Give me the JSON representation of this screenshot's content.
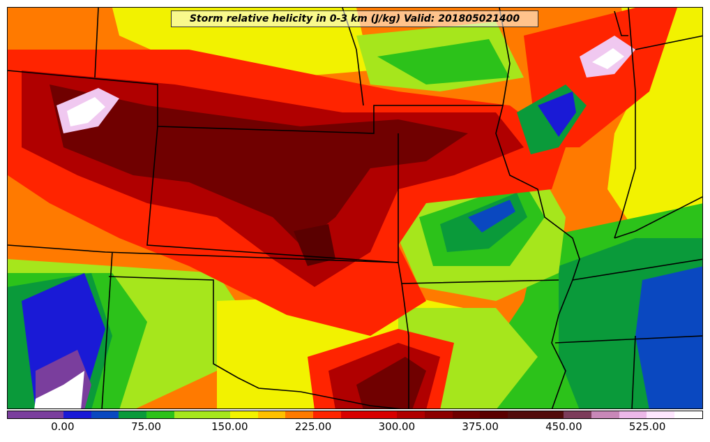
{
  "title": "Storm relative helicity in 0-3 km (J/kg) Valid: 201805021400",
  "colorbar": {
    "colors": [
      "#7a3e9d",
      "#1a1ad6",
      "#0a48c0",
      "#0a9a3a",
      "#2cc21a",
      "#a6e61c",
      "#f2f200",
      "#ffc000",
      "#ff7a00",
      "#ff2400",
      "#d80000",
      "#b00000",
      "#8c0000",
      "#6e0000",
      "#5a0000",
      "#520c0c",
      "#7c3c5a",
      "#c888b8",
      "#ecb8e8",
      "#fde6fd",
      "#ffffff"
    ],
    "labels": [
      "0.00",
      "75.00",
      "150.00",
      "225.00",
      "300.00",
      "375.00",
      "450.00",
      "525.00"
    ],
    "label_segment_index": [
      2,
      5,
      8,
      11,
      14,
      17,
      20,
      23
    ]
  },
  "map": {
    "field_colors": {
      "blue": "#1a1ad6",
      "green": "#0a9a3a",
      "lightgreen": "#2cc21a",
      "lime": "#a6e61c",
      "yellow": "#f2f200",
      "orange": "#ff7a00",
      "red": "#ff2400",
      "darkred": "#b00000",
      "maroon": "#700000",
      "pink": "#f0c8f0",
      "white": "#ffffff",
      "purple": "#7a3e9d"
    }
  }
}
